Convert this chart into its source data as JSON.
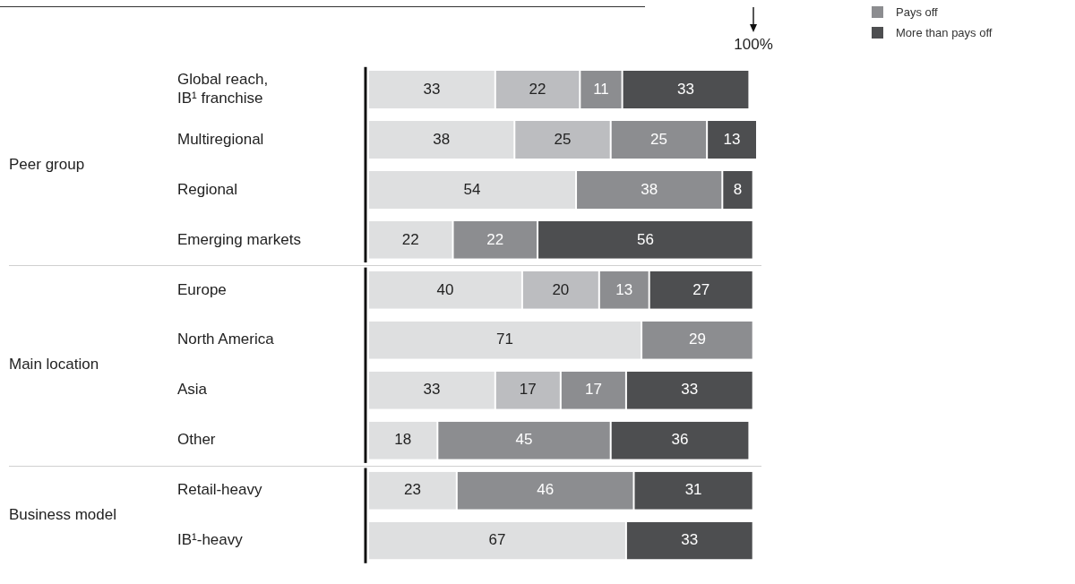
{
  "chart_data": {
    "type": "bar",
    "orientation": "horizontal",
    "stacked": true,
    "data_labels": true,
    "legend": "top right",
    "tick_labels": "y",
    "categories": [
      "Global reach, IB¹ franchise",
      "Multiregional",
      "Regional",
      "Emerging markets",
      "Europe",
      "North America",
      "Asia",
      "Other",
      "Retail-heavy",
      "IB¹-heavy"
    ],
    "xlim": [
      0,
      101
    ],
    "series": [
      {
        "color": "#dedfe0",
        "values": [
          33,
          38,
          54,
          22,
          40,
          71,
          33,
          18,
          23,
          67
        ]
      },
      {
        "color": "#bcbdc0",
        "values": [
          22,
          25,
          null,
          null,
          20,
          null,
          17,
          null,
          null,
          null
        ]
      },
      {
        "name": "Pays off",
        "color": "#8c8d90",
        "values": [
          11,
          25,
          38,
          22,
          13,
          29,
          17,
          45,
          46,
          null
        ]
      },
      {
        "name": "More than pays off",
        "color": "#4d4e50",
        "values": [
          33,
          13,
          8,
          56,
          27,
          null,
          33,
          36,
          31,
          33
        ]
      }
    ],
    "annotations": [
      "Peer group",
      "Main location",
      "Business model",
      "100%"
    ]
  }
}
